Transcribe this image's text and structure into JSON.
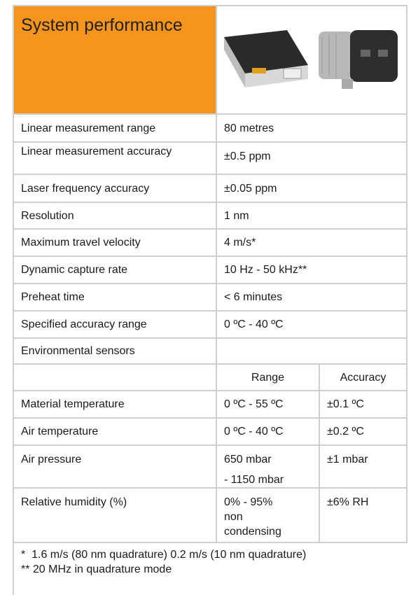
{
  "header": {
    "title": "System performance"
  },
  "specs": [
    [
      "Linear measurement range",
      "80 metres"
    ],
    [
      "Linear measurement accuracy",
      "±0.5 ppm"
    ],
    [
      "Laser frequency accuracy",
      "±0.05 ppm"
    ],
    [
      "Resolution",
      "1 nm"
    ],
    [
      "Maximum travel velocity",
      "4 m/s*"
    ],
    [
      "Dynamic capture rate",
      "10 Hz - 50 kHz**"
    ],
    [
      "Preheat time",
      "< 6 minutes"
    ],
    [
      "Specified accuracy range",
      "0 ºC - 40 ºC"
    ]
  ],
  "environment": {
    "title": "Environmental sensors",
    "columns": [
      "Range",
      "Accuracy"
    ],
    "rows": [
      {
        "label": "Material temperature",
        "range": [
          "0 ºC - 55 ºC"
        ],
        "accuracy": "±0.1 ºC"
      },
      {
        "label": "Air temperature",
        "range": [
          "0 ºC - 40 ºC"
        ],
        "accuracy": "±0.2 ºC"
      },
      {
        "label": "Air pressure",
        "range": [
          "650 mbar",
          "- 1150 mbar"
        ],
        "accuracy": "±1 mbar"
      },
      {
        "label": "Relative humidity (%)",
        "range": [
          "0% - 95%",
          "non",
          "condensing"
        ],
        "accuracy": "±6% RH"
      }
    ]
  },
  "footnotes": [
    "*  1.6 m/s (80 nm quadrature) 0.2 m/s (10 nm quadrature)",
    "** 20 MHz in quadrature mode"
  ]
}
